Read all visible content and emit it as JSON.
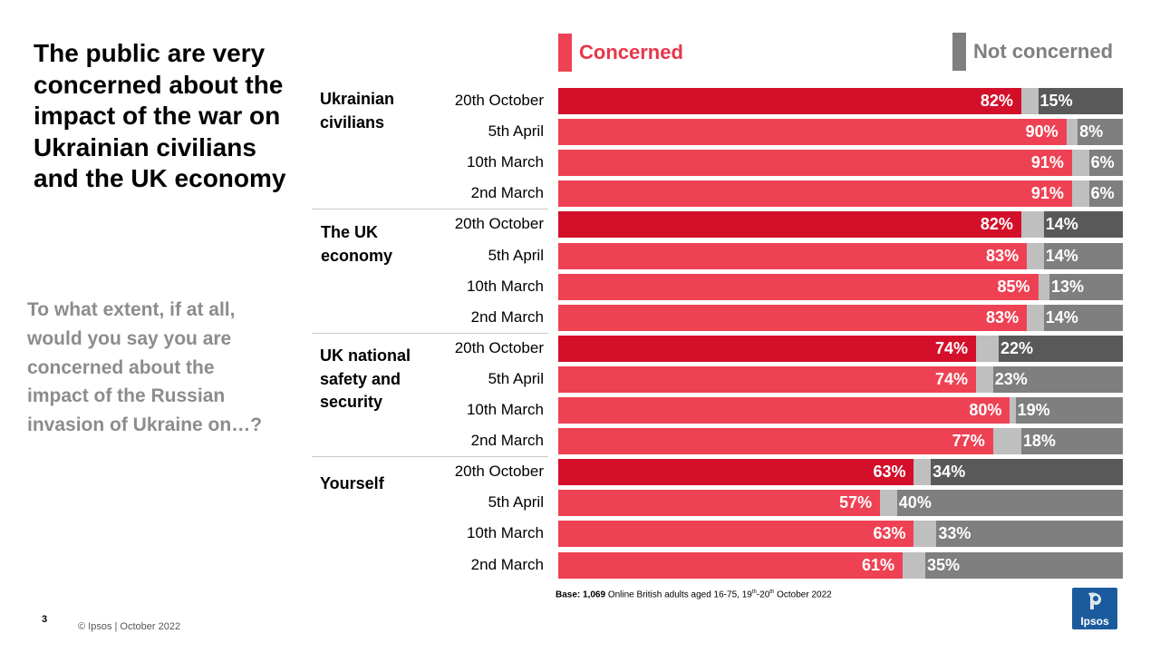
{
  "title": "The public are very concerned about the impact of the war on Ukrainian civilians and the UK economy",
  "question": "To what extent, if at all, would you say you are concerned about the impact of the Russian invasion of Ukraine on…?",
  "legend": {
    "concerned": "Concerned",
    "not_concerned": "Not concerned"
  },
  "colors": {
    "concerned_latest": "#d30f2a",
    "concerned": "#ee4254",
    "neutral": "#bfbfbf",
    "not_concerned": "#7f7f7f",
    "not_concerned_latest": "#595959",
    "legend_concerned_text": "#e8354a",
    "legend_not_text": "#7f7f7f"
  },
  "chart_data": {
    "type": "bar",
    "orientation": "horizontal",
    "stacked": true,
    "unit": "%",
    "xlim": [
      0,
      100
    ],
    "legend_position": "top",
    "series_names": [
      "Concerned",
      "Not concerned"
    ],
    "groups": [
      {
        "name": "Ukrainian civilians",
        "rows": [
          {
            "label": "20th October",
            "concerned": 82,
            "not_concerned": 15,
            "latest": true
          },
          {
            "label": "5th April",
            "concerned": 90,
            "not_concerned": 8,
            "latest": false
          },
          {
            "label": "10th March",
            "concerned": 91,
            "not_concerned": 6,
            "latest": false
          },
          {
            "label": "2nd March",
            "concerned": 91,
            "not_concerned": 6,
            "latest": false
          }
        ]
      },
      {
        "name": "The UK economy",
        "rows": [
          {
            "label": "20th October",
            "concerned": 82,
            "not_concerned": 14,
            "latest": true
          },
          {
            "label": "5th April",
            "concerned": 83,
            "not_concerned": 14,
            "latest": false
          },
          {
            "label": "10th March",
            "concerned": 85,
            "not_concerned": 13,
            "latest": false
          },
          {
            "label": "2nd March",
            "concerned": 83,
            "not_concerned": 14,
            "latest": false
          }
        ]
      },
      {
        "name": "UK national safety and security",
        "rows": [
          {
            "label": "20th October",
            "concerned": 74,
            "not_concerned": 22,
            "latest": true
          },
          {
            "label": "5th April",
            "concerned": 74,
            "not_concerned": 23,
            "latest": false
          },
          {
            "label": "10th March",
            "concerned": 80,
            "not_concerned": 19,
            "latest": false
          },
          {
            "label": "2nd March",
            "concerned": 77,
            "not_concerned": 18,
            "latest": false
          }
        ]
      },
      {
        "name": "Yourself",
        "rows": [
          {
            "label": "20th October",
            "concerned": 63,
            "not_concerned": 34,
            "latest": true
          },
          {
            "label": "5th April",
            "concerned": 57,
            "not_concerned": 40,
            "latest": false
          },
          {
            "label": "10th March",
            "concerned": 63,
            "not_concerned": 33,
            "latest": false
          },
          {
            "label": "2nd March",
            "concerned": 61,
            "not_concerned": 35,
            "latest": false
          }
        ]
      }
    ]
  },
  "base_note": {
    "prefix": "Base: 1,069",
    "text_a": " Online British adults aged 16-75, 19",
    "sup_a": "th",
    "text_b": "-20",
    "sup_b": "th",
    "text_c": " October 2022"
  },
  "page_number": "3",
  "footer": "© Ipsos | October 2022",
  "logo_text": "Ipsos"
}
